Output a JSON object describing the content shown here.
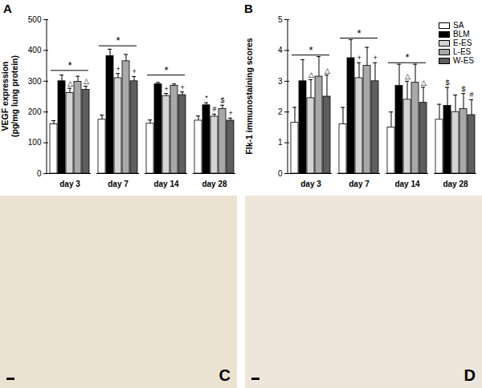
{
  "chart_data": [
    {
      "type": "bar",
      "title": "A",
      "ylabel": "VEGF expression\n(pg/mg lung protein)",
      "categories": [
        "day 3",
        "day 7",
        "day 14",
        "day 28"
      ],
      "ylim": [
        0,
        500
      ],
      "yticks": [
        0,
        100,
        200,
        300,
        400,
        500
      ],
      "series": [
        {
          "name": "SA",
          "color": "#ffffff",
          "values": [
            160,
            175,
            162,
            172
          ],
          "errors": [
            12,
            15,
            12,
            15
          ],
          "annotations": [
            null,
            null,
            null,
            null
          ]
        },
        {
          "name": "BLM",
          "color": "#000000",
          "values": [
            300,
            382,
            290,
            222
          ],
          "errors": [
            20,
            22,
            6,
            8
          ],
          "annotations": [
            null,
            null,
            null,
            "*"
          ]
        },
        {
          "name": "E-ES",
          "color": "#d4d4d4",
          "values": [
            262,
            310,
            252,
            185
          ],
          "errors": [
            15,
            15,
            8,
            8
          ],
          "annotations": [
            "△",
            "+",
            "+",
            "#"
          ]
        },
        {
          "name": "L-ES",
          "color": "#a8a8a8",
          "values": [
            298,
            365,
            285,
            210
          ],
          "errors": [
            18,
            22,
            6,
            12
          ],
          "annotations": [
            null,
            null,
            null,
            "$"
          ]
        },
        {
          "name": "W-ES",
          "color": "#5e5e5e",
          "values": [
            272,
            300,
            255,
            172
          ],
          "errors": [
            12,
            15,
            10,
            8
          ],
          "annotations": [
            "△",
            "+",
            "+",
            "+"
          ]
        }
      ],
      "group_annotations": [
        {
          "category": "day 3",
          "value": 335,
          "label": "*"
        },
        {
          "category": "day 7",
          "value": 415,
          "label": "*"
        },
        {
          "category": "day 14",
          "value": 320,
          "label": "*"
        }
      ]
    },
    {
      "type": "bar",
      "title": "B",
      "ylabel": "Flk-1 immunostaining scores",
      "categories": [
        "day 3",
        "day 7",
        "day 14",
        "day 28"
      ],
      "ylim": [
        0,
        5
      ],
      "yticks": [
        0,
        1,
        2,
        3,
        4,
        5
      ],
      "legend": "top-right",
      "series": [
        {
          "name": "SA",
          "color": "#ffffff",
          "values": [
            1.65,
            1.6,
            1.5,
            1.75
          ],
          "errors": [
            0.5,
            0.55,
            0.5,
            0.5
          ],
          "annotations": [
            null,
            null,
            null,
            null
          ]
        },
        {
          "name": "BLM",
          "color": "#000000",
          "values": [
            3.0,
            3.75,
            2.85,
            2.2
          ],
          "errors": [
            0.7,
            0.6,
            0.7,
            0.6
          ],
          "annotations": [
            null,
            null,
            null,
            "$"
          ]
        },
        {
          "name": "E-ES",
          "color": "#d4d4d4",
          "values": [
            2.45,
            3.1,
            2.4,
            2.0
          ],
          "errors": [
            0.6,
            0.5,
            0.6,
            0.55
          ],
          "annotations": [
            "△",
            "+",
            "△",
            null
          ]
        },
        {
          "name": "L-ES",
          "color": "#a8a8a8",
          "values": [
            3.15,
            3.5,
            2.95,
            2.1
          ],
          "errors": [
            0.65,
            0.6,
            0.6,
            0.5
          ],
          "annotations": [
            null,
            null,
            null,
            "$"
          ]
        },
        {
          "name": "W-ES",
          "color": "#5e5e5e",
          "values": [
            2.5,
            3.0,
            2.3,
            1.9
          ],
          "errors": [
            0.7,
            0.6,
            0.5,
            0.5
          ],
          "annotations": [
            "△",
            "+",
            "△",
            "#"
          ]
        }
      ],
      "group_annotations": [
        {
          "category": "day 3",
          "value": 3.85,
          "label": "*"
        },
        {
          "category": "day 7",
          "value": 4.4,
          "label": "*"
        },
        {
          "category": "day 14",
          "value": 3.6,
          "label": "*"
        }
      ]
    }
  ],
  "images": [
    {
      "label": "C"
    },
    {
      "label": "D"
    }
  ]
}
